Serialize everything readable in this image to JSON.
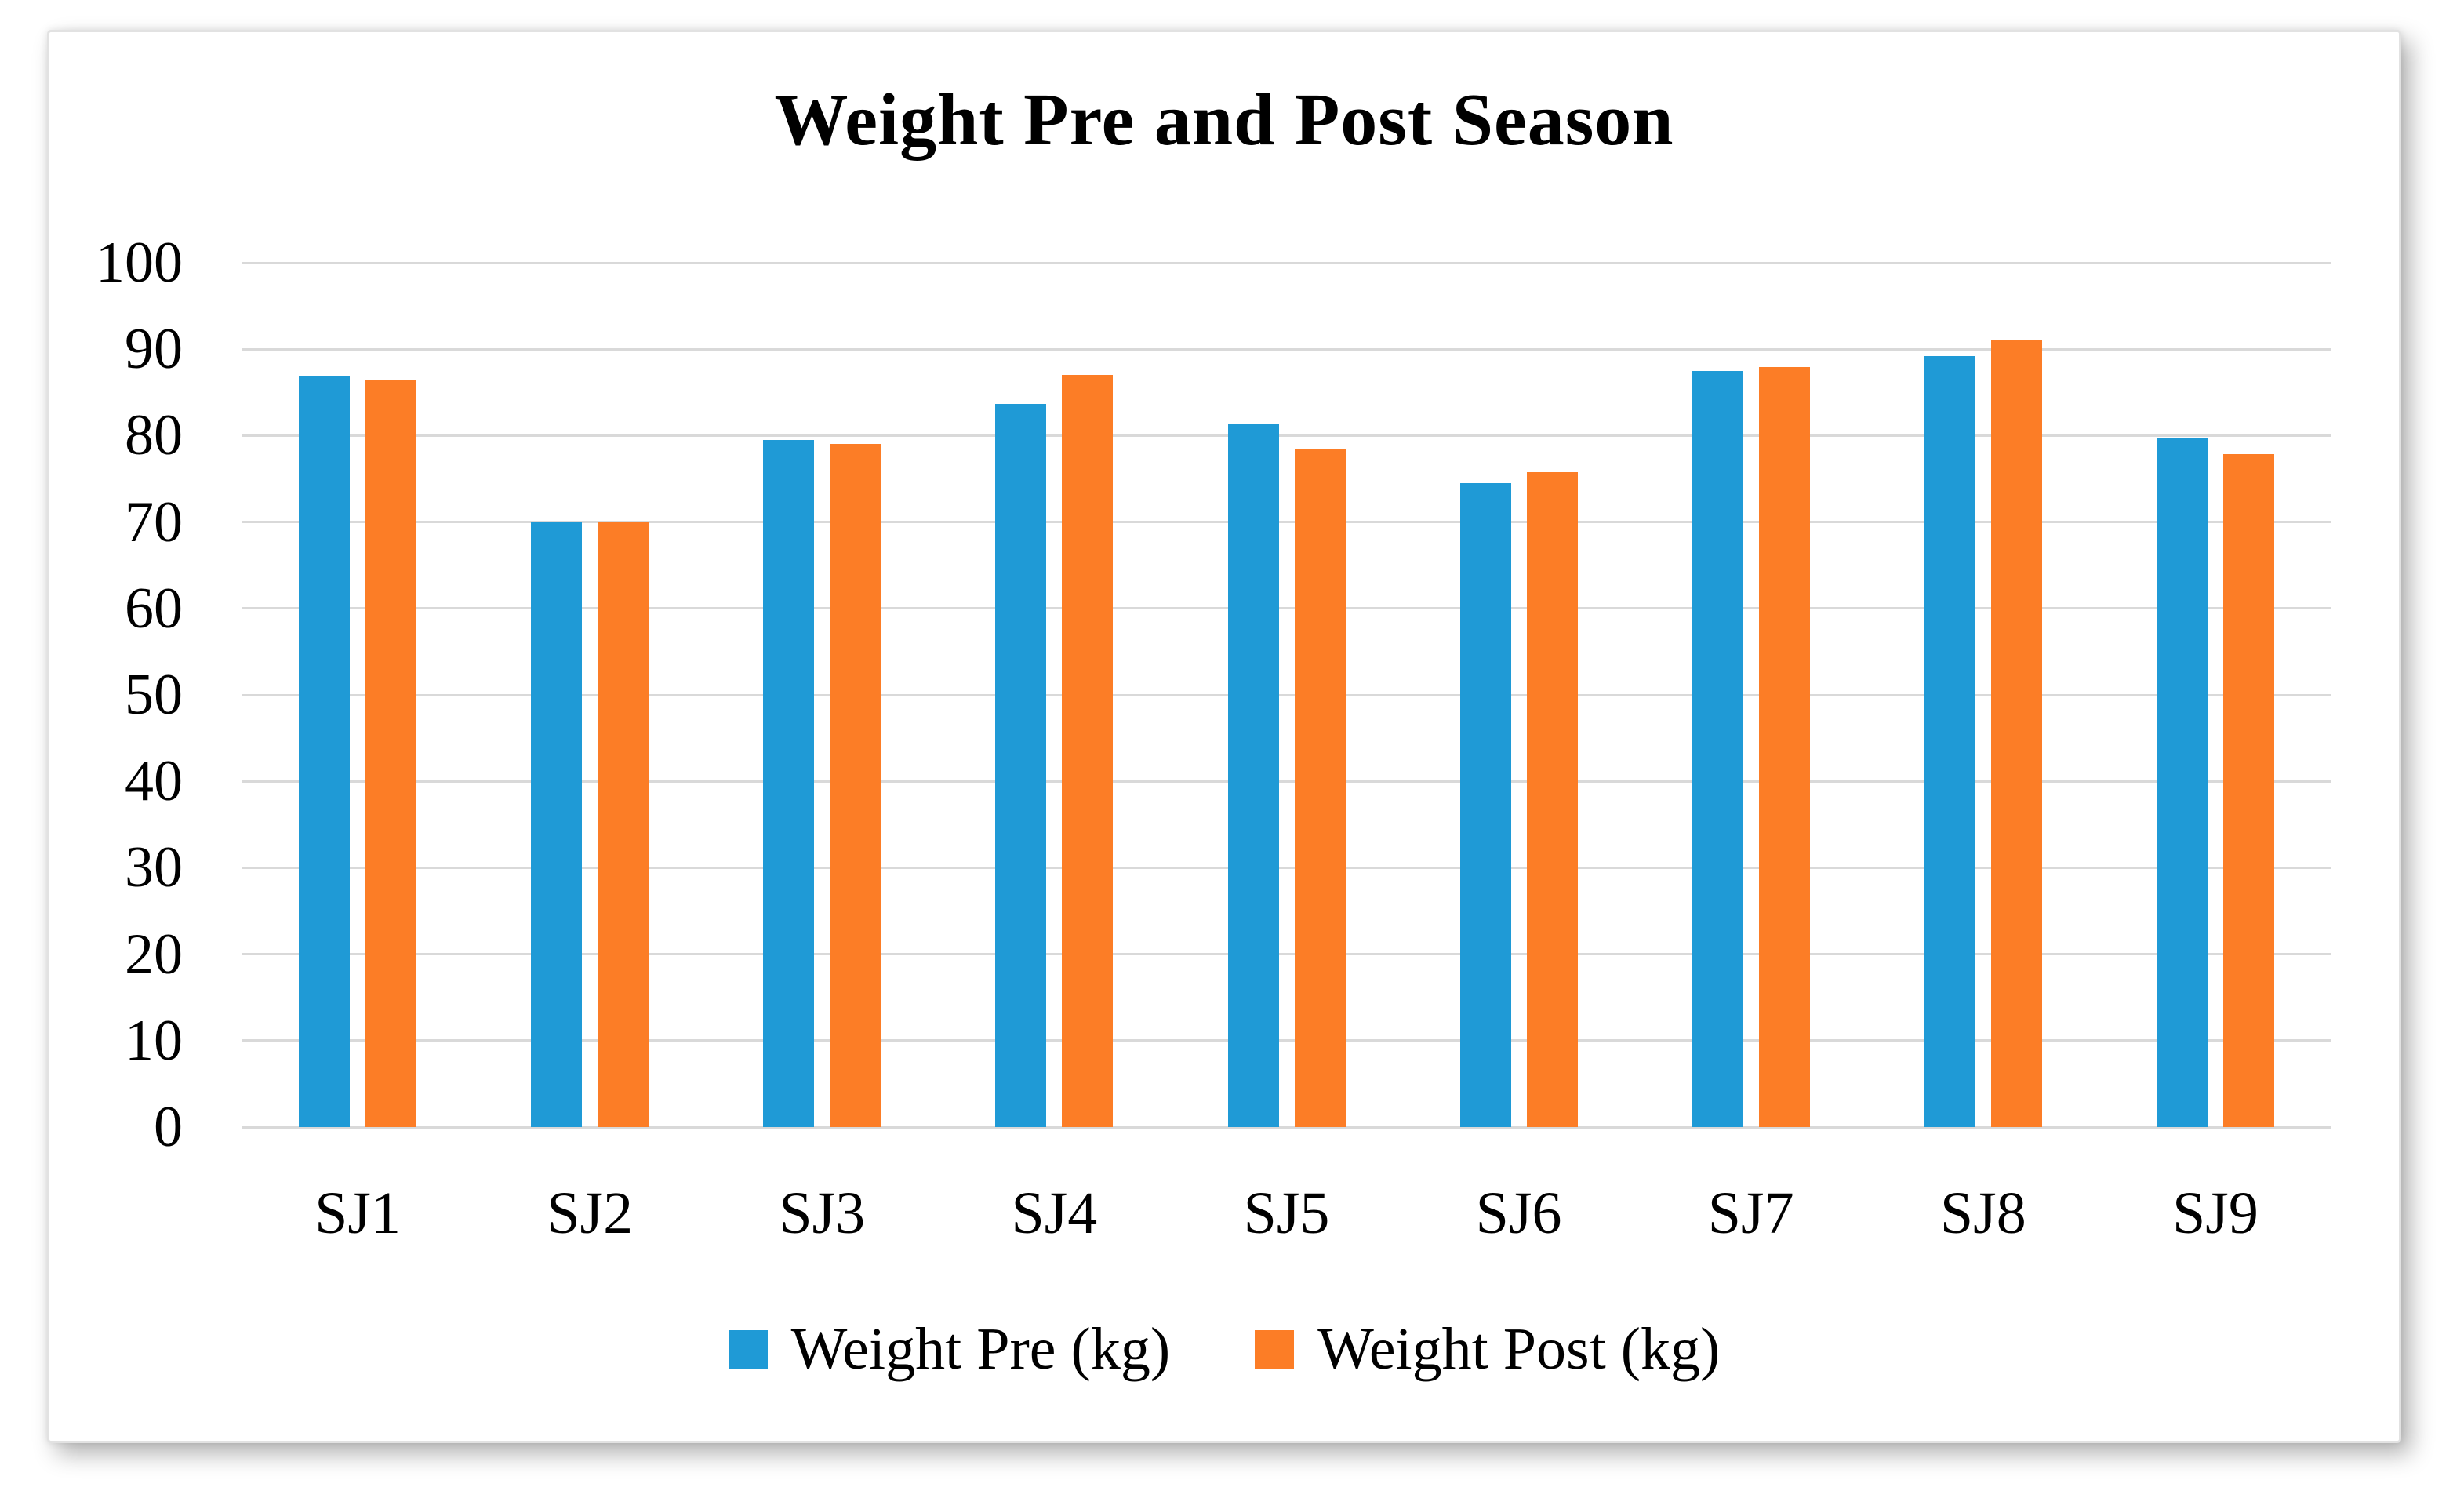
{
  "chart_data": {
    "type": "bar",
    "title": "Weight Pre and Post Season",
    "categories": [
      "SJ1",
      "SJ2",
      "SJ3",
      "SJ4",
      "SJ5",
      "SJ6",
      "SJ7",
      "SJ8",
      "SJ9"
    ],
    "series": [
      {
        "name": "Weight Pre (kg)",
        "color": "#1F9AD6",
        "values": [
          86.8,
          70.0,
          79.5,
          83.7,
          81.4,
          74.5,
          87.5,
          89.2,
          79.7
        ]
      },
      {
        "name": "Weight Post (kg)",
        "color": "#FC7D26",
        "values": [
          86.5,
          70.0,
          79.0,
          87.0,
          78.5,
          75.8,
          87.9,
          91.0,
          77.9
        ]
      }
    ],
    "ylim": [
      0,
      100
    ],
    "yticks": [
      0,
      10,
      20,
      30,
      40,
      50,
      60,
      70,
      80,
      90,
      100
    ],
    "xlabel": "",
    "ylabel": "",
    "grid": "horizontal",
    "gridline_color": "#D9D9D9",
    "legend_position": "bottom",
    "background_color": "#FFFFFF",
    "title_color": "#000000",
    "tick_label_color": "#000000"
  }
}
